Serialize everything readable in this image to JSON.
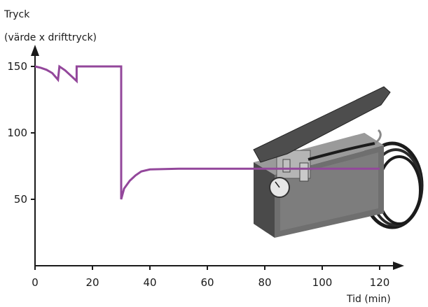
{
  "chart_data": {
    "type": "line",
    "title": "",
    "ylabel_line1": "Tryck",
    "ylabel_line2": "(värde x drifttryck)",
    "xlabel": "Tid (min)",
    "xlim": [
      0,
      128
    ],
    "ylim": [
      0,
      160
    ],
    "x_ticks": [
      0,
      20,
      40,
      60,
      80,
      100,
      120
    ],
    "x_tick_labels": [
      "0",
      "20",
      "40",
      "60",
      "80",
      "100",
      "120"
    ],
    "y_ticks": [
      50,
      100,
      150
    ],
    "y_tick_labels": [
      "50",
      "100",
      "150"
    ],
    "grid": false,
    "line_color": "#93479b",
    "axis_color": "#1a1a1a",
    "series": [
      {
        "points": [
          [
            0,
            150
          ],
          [
            2,
            149
          ],
          [
            4,
            147.5
          ],
          [
            6,
            145
          ],
          [
            8,
            140
          ],
          [
            8.5,
            150
          ],
          [
            10.5,
            147
          ],
          [
            12.5,
            143
          ],
          [
            14.5,
            139
          ],
          [
            14.5,
            150
          ],
          [
            30,
            150
          ],
          [
            30,
            50
          ],
          [
            31,
            58
          ],
          [
            33,
            64
          ],
          [
            35,
            68
          ],
          [
            37,
            71
          ],
          [
            40,
            72.5
          ],
          [
            50,
            73
          ],
          [
            80,
            73
          ],
          [
            100,
            73
          ],
          [
            120,
            73
          ]
        ]
      }
    ],
    "illustration": {
      "description_icon": "hand-pump-icon"
    }
  }
}
